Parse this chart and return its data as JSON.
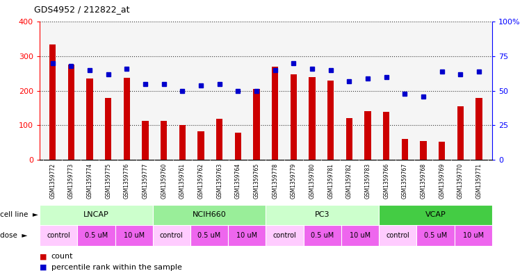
{
  "title": "GDS4952 / 212822_at",
  "samples": [
    "GSM1359772",
    "GSM1359773",
    "GSM1359774",
    "GSM1359775",
    "GSM1359776",
    "GSM1359777",
    "GSM1359760",
    "GSM1359761",
    "GSM1359762",
    "GSM1359763",
    "GSM1359764",
    "GSM1359765",
    "GSM1359778",
    "GSM1359779",
    "GSM1359780",
    "GSM1359781",
    "GSM1359782",
    "GSM1359783",
    "GSM1359766",
    "GSM1359767",
    "GSM1359768",
    "GSM1359769",
    "GSM1359770",
    "GSM1359771"
  ],
  "counts": [
    335,
    275,
    235,
    180,
    238,
    113,
    112,
    100,
    83,
    118,
    78,
    205,
    270,
    248,
    240,
    230,
    120,
    140,
    138,
    60,
    55,
    53,
    155,
    180
  ],
  "percentiles": [
    70,
    68,
    65,
    62,
    66,
    55,
    55,
    50,
    54,
    55,
    50,
    50,
    65,
    70,
    66,
    65,
    57,
    59,
    60,
    48,
    46,
    64,
    62,
    64
  ],
  "cell_lines": [
    {
      "label": "LNCAP",
      "start": 0,
      "end": 6,
      "color": "#ccffcc"
    },
    {
      "label": "NCIH660",
      "start": 6,
      "end": 12,
      "color": "#99ee99"
    },
    {
      "label": "PC3",
      "start": 12,
      "end": 18,
      "color": "#ccffcc"
    },
    {
      "label": "VCAP",
      "start": 18,
      "end": 24,
      "color": "#44cc44"
    }
  ],
  "dose_groups": [
    {
      "label": "control",
      "start": 0,
      "end": 2,
      "color": "#ffccff"
    },
    {
      "label": "0.5 uM",
      "start": 2,
      "end": 4,
      "color": "#ee66ee"
    },
    {
      "label": "10 uM",
      "start": 4,
      "end": 6,
      "color": "#ee66ee"
    },
    {
      "label": "control",
      "start": 6,
      "end": 8,
      "color": "#ffccff"
    },
    {
      "label": "0.5 uM",
      "start": 8,
      "end": 10,
      "color": "#ee66ee"
    },
    {
      "label": "10 uM",
      "start": 10,
      "end": 12,
      "color": "#ee66ee"
    },
    {
      "label": "control",
      "start": 12,
      "end": 14,
      "color": "#ffccff"
    },
    {
      "label": "0.5 uM",
      "start": 14,
      "end": 16,
      "color": "#ee66ee"
    },
    {
      "label": "10 uM",
      "start": 16,
      "end": 18,
      "color": "#ee66ee"
    },
    {
      "label": "control",
      "start": 18,
      "end": 20,
      "color": "#ffccff"
    },
    {
      "label": "0.5 uM",
      "start": 20,
      "end": 22,
      "color": "#ee66ee"
    },
    {
      "label": "10 uM",
      "start": 22,
      "end": 24,
      "color": "#ee66ee"
    }
  ],
  "bar_color": "#cc0000",
  "dot_color": "#0000cc",
  "left_ylim": [
    0,
    400
  ],
  "left_yticks": [
    0,
    100,
    200,
    300,
    400
  ],
  "right_ylim": [
    0,
    100
  ],
  "right_yticks": [
    0,
    25,
    50,
    75,
    100
  ],
  "right_yticklabels": [
    "0",
    "25",
    "50",
    "75",
    "100%"
  ],
  "plot_bg": "#f5f5f5",
  "xtick_bg": "#cccccc",
  "grid_color": "#333333",
  "cell_line_label": "cell line",
  "dose_label": "dose"
}
